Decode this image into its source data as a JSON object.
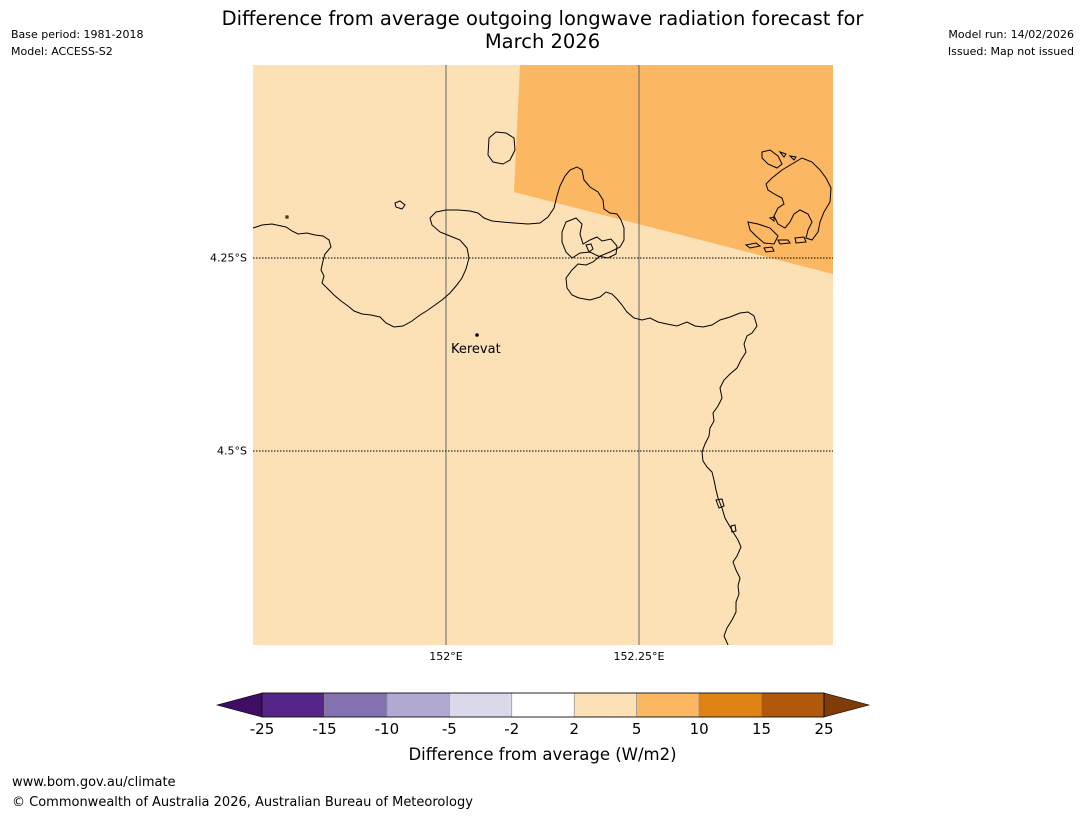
{
  "title": {
    "line1": "Difference from average outgoing longwave radiation forecast for",
    "line2": "March 2026"
  },
  "meta_left": {
    "base_period": "Base period: 1981-2018",
    "model": "Model: ACCESS-S2"
  },
  "meta_right": {
    "model_run": "Model run: 14/02/2026",
    "issued": "Issued: Map not issued"
  },
  "map": {
    "lat_ticks": [
      "4.25°S",
      "4.5°S"
    ],
    "lon_ticks": [
      "152°E",
      "152.25°E"
    ],
    "place": "Kerevat",
    "base_category": "2 to 5",
    "overlay_category": "5 to 10",
    "colors": {
      "base_fill": "#fce0b6",
      "overlay_fill": "#fbb762",
      "coastline": "#000000"
    }
  },
  "colorbar": {
    "tick_labels": [
      "-25",
      "-15",
      "-10",
      "-5",
      "-2",
      "2",
      "5",
      "10",
      "15",
      "25"
    ],
    "colors": [
      "#3f0d63",
      "#56258a",
      "#8471af",
      "#b2a9d3",
      "#d9d9ea",
      "#ffffff",
      "#fce0b6",
      "#fbb762",
      "#e08316",
      "#b0580b",
      "#7f3b08"
    ],
    "label": "Difference from average (W/m2)"
  },
  "footer": {
    "url": "www.bom.gov.au/climate",
    "copyright": "© Commonwealth of Australia 2026, Australian Bureau of Meteorology"
  }
}
